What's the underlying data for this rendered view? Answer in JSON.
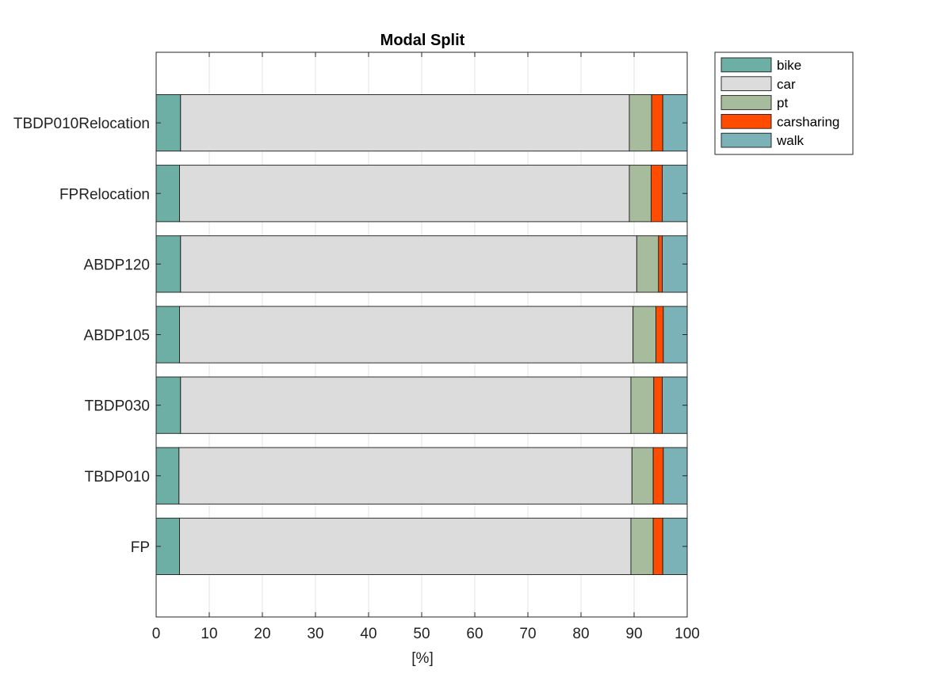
{
  "chart_data": {
    "type": "bar",
    "orientation": "horizontal",
    "stacked": true,
    "title": "Modal Split",
    "xlabel": "[%]",
    "ylabel": "",
    "xlim": [
      0,
      100
    ],
    "xticks": [
      0,
      10,
      20,
      30,
      40,
      50,
      60,
      70,
      80,
      90,
      100
    ],
    "grid": true,
    "legend_position": "outside-top-right",
    "categories": [
      "FP",
      "TBDP010",
      "TBDP030",
      "ABDP105",
      "ABDP120",
      "FPRelocation",
      "TBDP010Relocation"
    ],
    "series": [
      {
        "name": "bike",
        "color": "#6DAEA5",
        "values": [
          4.4,
          4.3,
          4.6,
          4.4,
          4.6,
          4.4,
          4.6
        ]
      },
      {
        "name": "car",
        "color": "#DCDCDC",
        "values": [
          85.0,
          85.3,
          84.8,
          85.4,
          85.9,
          84.7,
          84.5
        ]
      },
      {
        "name": "pt",
        "color": "#A7BC9D",
        "values": [
          4.2,
          4.0,
          4.3,
          4.3,
          4.1,
          4.1,
          4.2
        ]
      },
      {
        "name": "carsharing",
        "color": "#FF4C00",
        "values": [
          1.8,
          1.9,
          1.6,
          1.4,
          0.7,
          2.1,
          2.1
        ]
      },
      {
        "name": "walk",
        "color": "#7AB2B7",
        "values": [
          4.6,
          4.5,
          4.7,
          4.5,
          4.7,
          4.7,
          4.6
        ]
      }
    ]
  }
}
